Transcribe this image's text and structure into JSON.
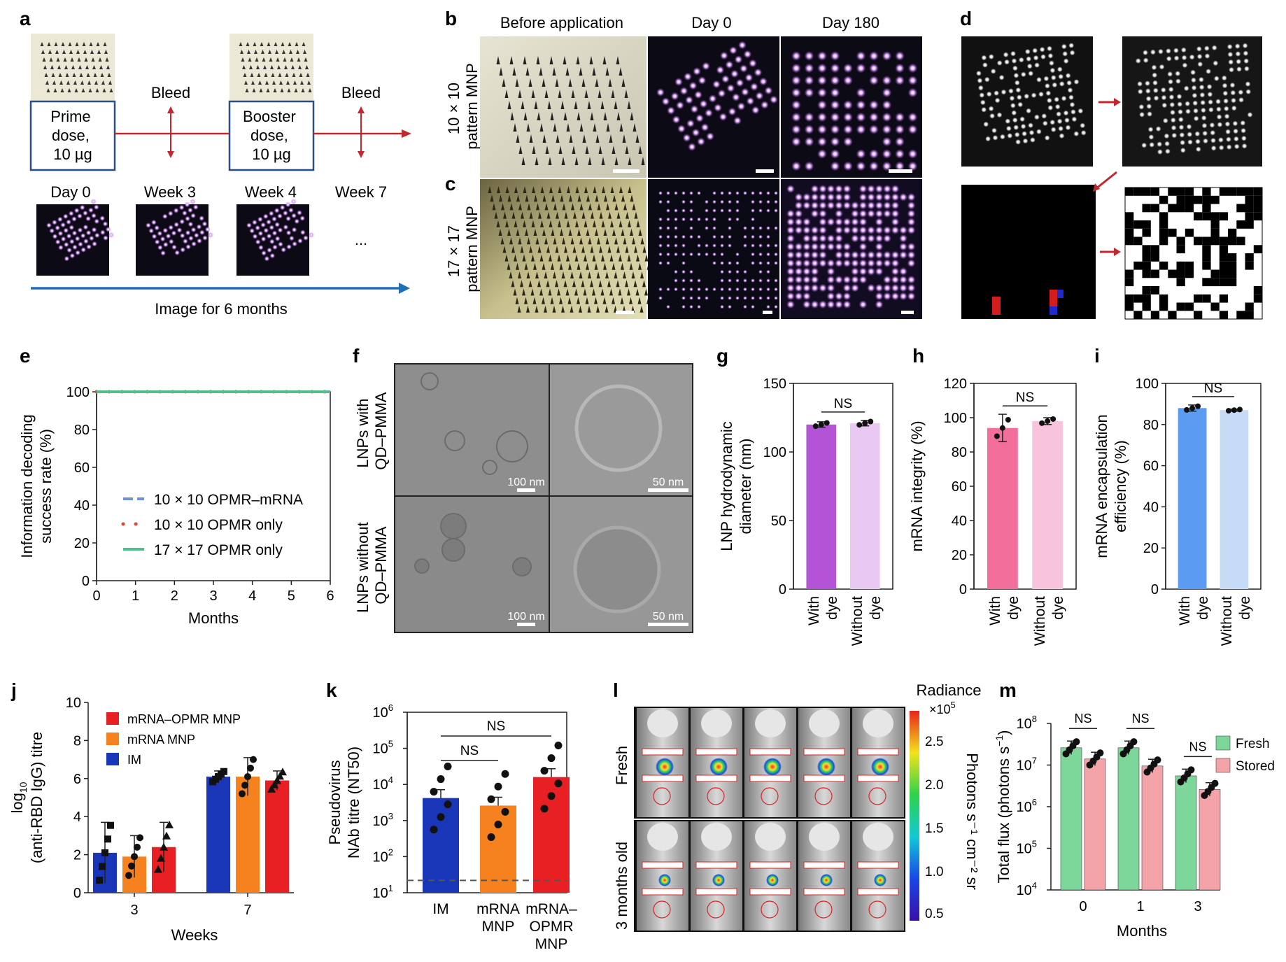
{
  "panel_letters": [
    "a",
    "b",
    "c",
    "d",
    "e",
    "f",
    "g",
    "h",
    "i",
    "j",
    "k",
    "l",
    "m"
  ],
  "a": {
    "prime_lines": [
      "Prime",
      "dose,",
      "10 µg"
    ],
    "booster_lines": [
      "Booster",
      "dose,",
      "10 µg"
    ],
    "bleed": [
      "Bleed",
      "Bleed"
    ],
    "timepoints": [
      "Day 0",
      "Week 3",
      "Week 4",
      "Week 7"
    ],
    "ellipsis": "...",
    "arrow_caption": "Image for 6 months",
    "colors": {
      "timeline": "#c0282d",
      "image_arrow": "#1f6fb6",
      "dose_box": "#2a4f85"
    }
  },
  "bc": {
    "column_titles": [
      "Before application",
      "Day 0",
      "Day 180"
    ],
    "row_b_label": [
      "10 × 10",
      "pattern MNP"
    ],
    "row_c_label": [
      "17 × 17",
      "pattern MNP"
    ]
  },
  "f": {
    "row_labels": [
      [
        "LNPs with",
        "QD–PMMA"
      ],
      [
        "LNPs without",
        "QD–PMMA"
      ]
    ],
    "scale_labels": [
      "100 nm",
      "50 nm",
      "100 nm",
      "50 nm"
    ]
  },
  "chart_data": [
    {
      "panel": "e",
      "type": "line",
      "xlabel": "Months",
      "ylabel_lines": [
        "Information decoding",
        "success rate (%)"
      ],
      "xlim": [
        0,
        6
      ],
      "ylim": [
        0,
        100
      ],
      "xticks": [
        0,
        1,
        2,
        3,
        4,
        5,
        6
      ],
      "yticks": [
        0,
        20,
        40,
        60,
        80,
        100
      ],
      "legend_position": "center",
      "series": [
        {
          "name": "10 × 10 OPMR–mRNA",
          "color": "#6f8fd6",
          "style": "dash",
          "x": [
            0,
            6
          ],
          "y": [
            100,
            100
          ]
        },
        {
          "name": "10 × 10 OPMR only",
          "color": "#e0473c",
          "style": "dot",
          "x": [
            0,
            6
          ],
          "y": [
            100,
            100
          ]
        },
        {
          "name": "17 × 17 OPMR only",
          "color": "#4fc08d",
          "style": "solid",
          "x": [
            0,
            6
          ],
          "y": [
            100,
            100
          ]
        }
      ]
    },
    {
      "panel": "g",
      "type": "bar",
      "ylabel_lines": [
        "LNP hydrodynamic",
        "diameter (nm)"
      ],
      "categories": [
        [
          "With",
          "dye"
        ],
        [
          "Without",
          "dye"
        ]
      ],
      "values": [
        120,
        121
      ],
      "errors": [
        2,
        2
      ],
      "ylim": [
        0,
        150
      ],
      "yticks": [
        0,
        50,
        100,
        150
      ],
      "colors": [
        "#b353d6",
        "#eac8f4"
      ],
      "significance": "NS"
    },
    {
      "panel": "h",
      "type": "bar",
      "ylabel_lines": [
        "mRNA integrity (%)"
      ],
      "categories": [
        [
          "With",
          "dye"
        ],
        [
          "Without",
          "dye"
        ]
      ],
      "values": [
        94,
        98
      ],
      "errors": [
        8,
        2
      ],
      "ylim": [
        0,
        120
      ],
      "yticks": [
        0,
        20,
        40,
        60,
        80,
        100,
        120
      ],
      "colors": [
        "#f36f9b",
        "#f8c3dc"
      ],
      "significance": "NS"
    },
    {
      "panel": "i",
      "type": "bar",
      "ylabel_lines": [
        "mRNA encapsulation",
        "efficiency (%)"
      ],
      "categories": [
        [
          "With",
          "dye"
        ],
        [
          "Without",
          "dye"
        ]
      ],
      "values": [
        88,
        87
      ],
      "errors": [
        1.5,
        0.5
      ],
      "ylim": [
        0,
        100
      ],
      "yticks": [
        0,
        20,
        40,
        60,
        80,
        100
      ],
      "colors": [
        "#5b9cf2",
        "#c5dbf6"
      ],
      "significance": "NS"
    },
    {
      "panel": "j",
      "type": "bar",
      "xlabel": "Weeks",
      "ylabel_lines": [
        "log",
        "(anti-RBD IgG) titre"
      ],
      "ylabel_subscript": "10",
      "categories": [
        "3",
        "7"
      ],
      "ylim": [
        0,
        10
      ],
      "yticks": [
        0,
        2,
        4,
        6,
        8,
        10
      ],
      "series": [
        {
          "name": "IM",
          "color": "#1a36b8",
          "values": [
            2.1,
            6.1
          ],
          "errors": [
            1.6,
            0.3
          ]
        },
        {
          "name": "mRNA MNP",
          "color": "#f5821f",
          "values": [
            1.9,
            6.1
          ],
          "errors": [
            1.1,
            1.0
          ]
        },
        {
          "name": "mRNA–OPMR MNP",
          "color": "#e82024",
          "values": [
            2.4,
            5.9
          ],
          "errors": [
            1.3,
            0.5
          ]
        }
      ],
      "legend_order": [
        "mRNA–OPMR MNP",
        "mRNA MNP",
        "IM"
      ]
    },
    {
      "panel": "k",
      "type": "bar",
      "ylabel_lines": [
        "Pseudovirus",
        "NAb titre (NT50)"
      ],
      "yscale": "log",
      "ylim": [
        10,
        1000000
      ],
      "ytick_labels": [
        "10",
        "10",
        "10",
        "10",
        "10",
        "10"
      ],
      "ytick_exponents": [
        "1",
        "2",
        "3",
        "4",
        "5",
        "6"
      ],
      "categories": [
        [
          "IM"
        ],
        [
          "mRNA",
          "MNP"
        ],
        [
          "mRNA–",
          "OPMR",
          "MNP"
        ]
      ],
      "values": [
        4200,
        2600,
        16000
      ],
      "colors": [
        "#1a36b8",
        "#f5821f",
        "#e82024"
      ],
      "limit_of_detection": 22,
      "significance": [
        "NS",
        "NS"
      ]
    },
    {
      "panel": "m",
      "type": "bar",
      "xlabel": "Months",
      "ylabel": "Total flux (photons s",
      "ylabel_sup": "−1",
      "yscale": "log",
      "ylim": [
        10000,
        100000000
      ],
      "ytick_labels": [
        "10",
        "10",
        "10",
        "10",
        "10"
      ],
      "ytick_exponents": [
        "4",
        "5",
        "6",
        "7",
        "8"
      ],
      "categories": [
        "0",
        "1",
        "3"
      ],
      "series": [
        {
          "name": "Fresh",
          "color": "#7ed79a",
          "values": [
            26000000,
            26000000,
            5500000
          ]
        },
        {
          "name": "Stored",
          "color": "#f4a3a8",
          "values": [
            14000000,
            9500000,
            2600000
          ]
        }
      ],
      "significance": [
        "NS",
        "NS",
        "NS"
      ]
    }
  ],
  "l": {
    "row_labels": [
      "Fresh",
      "3 months old"
    ],
    "colorbar_title": "Radiance",
    "colorbar_multiplier": "×10",
    "colorbar_multiplier_exp": "5",
    "colorbar_ticks": [
      "2.5",
      "2.0",
      "1.5",
      "1.0",
      "0.5"
    ],
    "colorbar_unit": "Photons s⁻¹ cm⁻² sr"
  }
}
